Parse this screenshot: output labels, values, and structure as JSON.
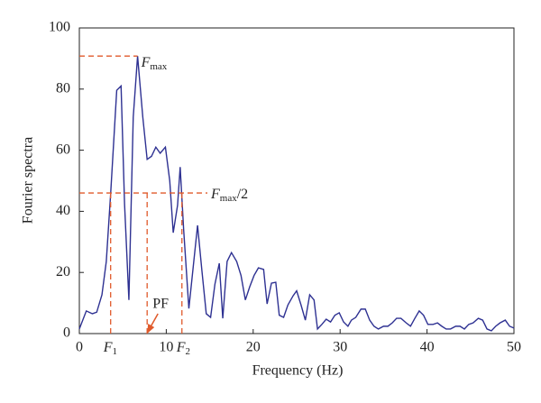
{
  "chart_data": {
    "type": "line",
    "x_label": "Frequency (Hz)",
    "y_label": "Fourier spectra",
    "xlim": [
      0,
      50
    ],
    "ylim": [
      0,
      100
    ],
    "xticks": [
      0,
      10,
      20,
      30,
      40,
      50
    ],
    "yticks": [
      0,
      20,
      40,
      60,
      80,
      100
    ],
    "series": [
      {
        "color": "#2e3192",
        "x": [
          0,
          0.8,
          1.5,
          2,
          2.6,
          3.1,
          3.6,
          4.3,
          4.8,
          5.2,
          5.7,
          6.2,
          6.7,
          7.3,
          7.8,
          8.3,
          8.8,
          9.3,
          9.9,
          10.4,
          10.8,
          11.3,
          11.6,
          12,
          12.6,
          13.1,
          13.6,
          14.1,
          14.6,
          15.1,
          15.6,
          16.1,
          16.5,
          17,
          17.5,
          18.1,
          18.6,
          19.1,
          19.6,
          20.1,
          20.6,
          21.2,
          21.6,
          22.1,
          22.6,
          23,
          23.5,
          24,
          24.6,
          25,
          25.5,
          26,
          26.5,
          27,
          27.4,
          27.9,
          28.4,
          28.9,
          29.4,
          29.9,
          30.4,
          30.9,
          31.3,
          31.8,
          32.4,
          32.9,
          33.4,
          33.9,
          34.4,
          35,
          35.5,
          36,
          36.5,
          37,
          37.6,
          38.1,
          38.6,
          39.1,
          39.6,
          40.1,
          40.7,
          41.2,
          41.7,
          42.2,
          42.7,
          43.3,
          43.8,
          44.3,
          44.8,
          45.3,
          45.9,
          46.4,
          46.9,
          47.4,
          47.9,
          48.4,
          49,
          49.5,
          50
        ],
        "values": [
          1.5,
          7.4,
          6.5,
          7,
          12.7,
          23.6,
          45.7,
          79.6,
          81,
          42.5,
          11,
          70.8,
          90.8,
          70.8,
          57,
          58,
          61,
          59,
          61,
          50,
          33,
          42,
          54.5,
          34,
          8.2,
          21.8,
          35.4,
          20.6,
          6.5,
          5.3,
          16.2,
          23,
          5,
          23.6,
          26.5,
          23.6,
          19,
          11,
          15.3,
          19,
          21.5,
          21,
          9.7,
          16.5,
          16.8,
          6,
          5.3,
          9.4,
          12.4,
          14,
          9.4,
          4.4,
          12.7,
          11,
          1.5,
          3,
          4.7,
          3.8,
          6,
          6.8,
          3.8,
          2.4,
          4.4,
          5.3,
          8,
          8,
          4.4,
          2.4,
          1.5,
          2.4,
          2.4,
          3.5,
          5,
          5,
          3.5,
          2.4,
          5,
          7.4,
          6,
          3,
          3,
          3.5,
          2.4,
          1.5,
          1.5,
          2.4,
          2.4,
          1.5,
          3,
          3.5,
          5,
          4.4,
          1.5,
          0.9,
          2.4,
          3.5,
          4.4,
          2.4,
          1.8
        ]
      }
    ],
    "annotations": {
      "color": "#e05a2b",
      "f_max": {
        "y": 90.8,
        "x": 6.7,
        "label": [
          "F",
          "max"
        ]
      },
      "half_max": {
        "y": 46,
        "label": [
          "F",
          "max",
          "/2"
        ]
      },
      "f1": {
        "x": 3.6,
        "label": [
          "F",
          "1"
        ]
      },
      "f2": {
        "x": 11.8,
        "label": [
          "F",
          "2"
        ]
      },
      "pf": {
        "x": 7.8,
        "label": "PF"
      }
    }
  }
}
